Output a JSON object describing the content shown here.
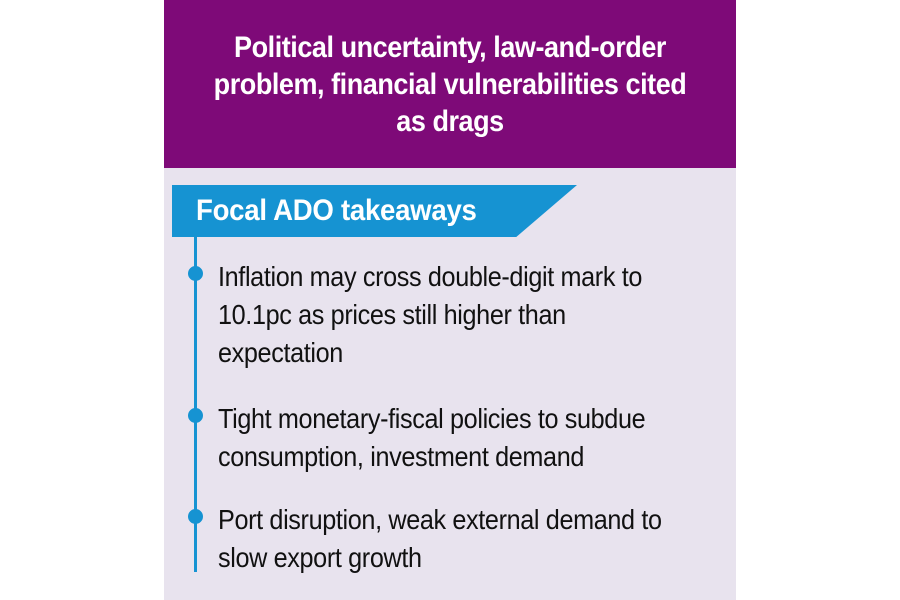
{
  "header": {
    "headline": "Political uncertainty, law-and-order problem, financial vulnerabilities cited as drags"
  },
  "banner": {
    "title": "Focal ADO takeaways"
  },
  "takeaways": [
    {
      "text": "Inflation may cross double-digit mark to 10.1pc as prices still higher than expectation"
    },
    {
      "text": "Tight monetary-fiscal policies to subdue consumption, investment demand"
    },
    {
      "text": "Port disruption, weak external demand to slow export growth"
    }
  ],
  "colors": {
    "header_bg": "#7e0a78",
    "card_bg": "#e8e3ee",
    "accent_blue": "#1693d2",
    "text": "#111111"
  }
}
